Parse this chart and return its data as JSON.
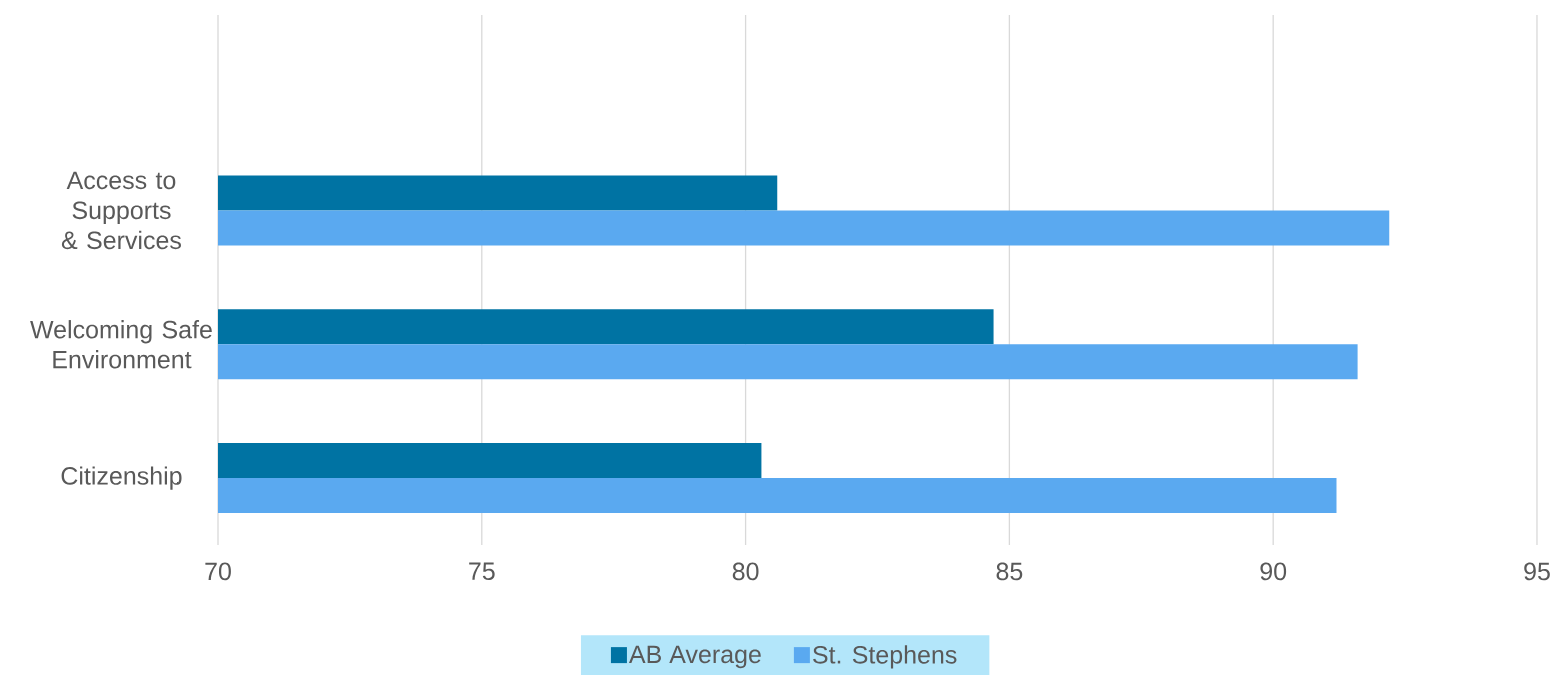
{
  "chart_data": {
    "type": "bar",
    "orientation": "horizontal",
    "categories": [
      "Access to Supports & Services",
      "Welcoming Safe Environment",
      "Citizenship"
    ],
    "series": [
      {
        "name": "AB Average",
        "color": "#0073a3",
        "values": [
          80.6,
          84.7,
          80.3
        ]
      },
      {
        "name": "St. Stephens",
        "color": "#5aa9f0",
        "values": [
          92.2,
          91.6,
          91.2
        ]
      }
    ],
    "xlim": [
      70,
      95
    ],
    "xticks": [
      70,
      75,
      80,
      85,
      90,
      95
    ],
    "grid": "x",
    "legend": "bottom"
  }
}
